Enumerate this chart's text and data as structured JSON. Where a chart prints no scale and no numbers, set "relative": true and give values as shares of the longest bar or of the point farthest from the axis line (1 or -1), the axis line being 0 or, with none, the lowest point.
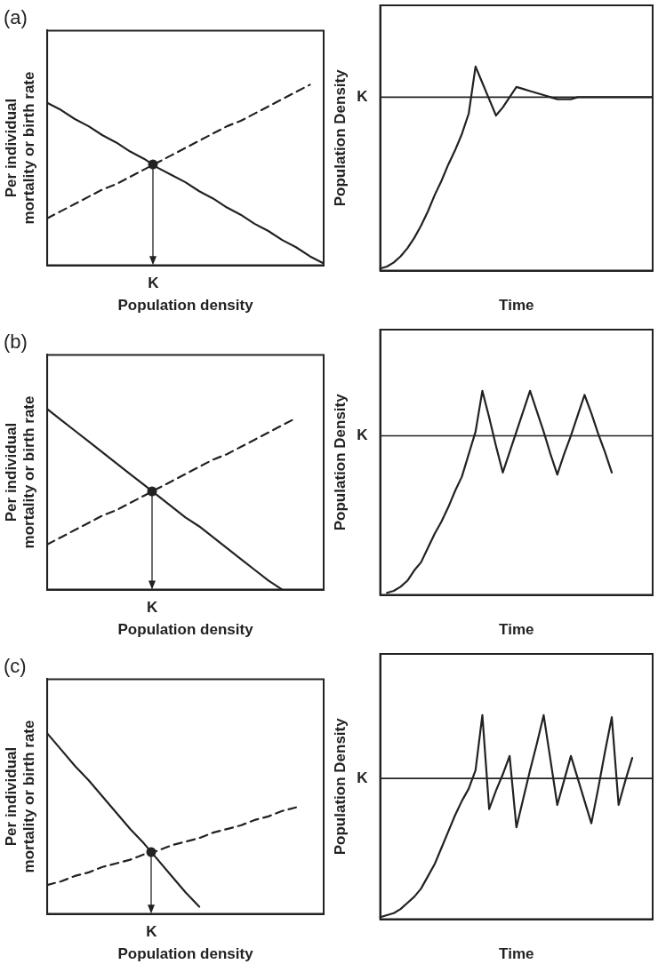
{
  "chart_data": [
    {
      "type": "line",
      "title": "(a)",
      "xlabel": "Population density",
      "ylabel": "Per individual mortality or birth rate",
      "relative": true,
      "tick_labels": false,
      "grid": false,
      "legend": false,
      "annotations": [
        "K"
      ],
      "categories": [
        null,
        null,
        null,
        null,
        null,
        null,
        null,
        null,
        null,
        null,
        null,
        null,
        null,
        null,
        null,
        null,
        null,
        null,
        null,
        null,
        null
      ],
      "series": [
        {
          "type": "line",
          "color": "#222222",
          "line_style": "solid",
          "marker": "none",
          "values": [
            0.9,
            0.86,
            0.81,
            0.77,
            0.72,
            0.68,
            0.63,
            0.59,
            0.54,
            0.5,
            0.46,
            0.41,
            0.37,
            0.32,
            0.28,
            0.23,
            0.19,
            0.14,
            0.1,
            0.05,
            0.01
          ]
        },
        {
          "type": "line",
          "color": "#222222",
          "line_style": "dashed",
          "marker": "none",
          "values": [
            0.26,
            0.3,
            0.34,
            0.38,
            0.42,
            0.45,
            0.49,
            0.53,
            0.57,
            0.61,
            0.65,
            0.69,
            0.73,
            0.77,
            0.8,
            0.84,
            0.88,
            0.92,
            0.96,
            1.0,
            null
          ]
        }
      ]
    },
    {
      "type": "line",
      "xlabel": "Time",
      "ylabel": "Population Density",
      "relative": true,
      "tick_labels": false,
      "grid": false,
      "legend": false,
      "categories": [
        null,
        null,
        null,
        null,
        null,
        null,
        null,
        null,
        null,
        null,
        null,
        null,
        null,
        null,
        null,
        null,
        null,
        null,
        null,
        null,
        null,
        null,
        null,
        null,
        null,
        null,
        null,
        null,
        null,
        null,
        null,
        null,
        null,
        null,
        null,
        null,
        null,
        null,
        null,
        null,
        null
      ],
      "ref_lines": [
        {
          "axis": "y",
          "value": 0.85,
          "label": "K"
        }
      ],
      "series": [
        {
          "type": "line",
          "color": "#222222",
          "line_style": "solid",
          "marker": "none",
          "values": [
            0.01,
            0.02,
            0.04,
            0.07,
            0.11,
            0.16,
            0.22,
            0.29,
            0.37,
            0.44,
            0.52,
            0.59,
            0.67,
            0.77,
            1.0,
            0.92,
            0.84,
            0.76,
            0.8,
            0.85,
            0.9,
            0.89,
            0.88,
            0.87,
            0.86,
            0.85,
            0.84,
            0.84,
            0.84,
            0.85,
            0.85,
            0.85,
            0.85,
            0.85,
            0.85,
            0.85,
            0.85,
            0.85,
            0.85,
            0.85,
            0.85
          ]
        }
      ]
    },
    {
      "type": "line",
      "title": "(b)",
      "xlabel": "Population density",
      "ylabel": "Per individual mortality or birth rate",
      "relative": true,
      "tick_labels": false,
      "grid": false,
      "legend": false,
      "annotations": [
        "K"
      ],
      "categories": [
        null,
        null,
        null,
        null,
        null,
        null,
        null,
        null,
        null,
        null,
        null,
        null,
        null,
        null,
        null,
        null,
        null,
        null,
        null,
        null,
        null
      ],
      "series": [
        {
          "type": "line",
          "color": "#222222",
          "line_style": "solid",
          "marker": "none",
          "values": [
            1.0,
            0.94,
            0.88,
            0.82,
            0.76,
            0.7,
            0.64,
            0.58,
            0.52,
            0.46,
            0.4,
            0.35,
            0.29,
            0.23,
            0.17,
            0.11,
            0.05,
            0.0,
            null,
            null,
            null
          ]
        },
        {
          "type": "line",
          "color": "#222222",
          "line_style": "dashed",
          "marker": "none",
          "values": [
            0.25,
            0.29,
            0.33,
            0.37,
            0.41,
            0.44,
            0.48,
            0.52,
            0.56,
            0.6,
            0.64,
            0.68,
            0.72,
            0.75,
            0.79,
            0.83,
            0.87,
            0.91,
            0.95,
            null,
            null
          ]
        }
      ]
    },
    {
      "type": "line",
      "xlabel": "Time",
      "ylabel": "Population Density",
      "relative": true,
      "tick_labels": false,
      "grid": false,
      "legend": false,
      "categories": [
        null,
        null,
        null,
        null,
        null,
        null,
        null,
        null,
        null,
        null,
        null,
        null,
        null,
        null,
        null,
        null,
        null,
        null,
        null,
        null,
        null,
        null,
        null,
        null,
        null,
        null,
        null,
        null,
        null,
        null,
        null,
        null,
        null,
        null,
        null,
        null,
        null,
        null,
        null,
        null,
        null
      ],
      "ref_lines": [
        {
          "axis": "y",
          "value": 0.78,
          "label": "K"
        }
      ],
      "series": [
        {
          "type": "line",
          "color": "#222222",
          "line_style": "solid",
          "marker": "none",
          "values": [
            null,
            0.01,
            0.02,
            0.04,
            0.07,
            0.12,
            0.16,
            0.23,
            0.3,
            0.36,
            0.43,
            0.51,
            0.58,
            0.69,
            0.8,
            1.0,
            0.87,
            0.73,
            0.6,
            0.7,
            0.8,
            0.9,
            1.0,
            0.9,
            0.8,
            0.69,
            0.59,
            0.69,
            0.78,
            0.88,
            0.98,
            0.89,
            0.79,
            0.7,
            0.6,
            null,
            null,
            null,
            null,
            null,
            null
          ]
        }
      ]
    },
    {
      "type": "line",
      "title": "(c)",
      "xlabel": "Population density",
      "ylabel": "Per individual mortality or birth rate",
      "relative": true,
      "tick_labels": false,
      "grid": false,
      "legend": false,
      "annotations": [
        "K"
      ],
      "categories": [
        null,
        null,
        null,
        null,
        null,
        null,
        null,
        null,
        null,
        null,
        null,
        null,
        null,
        null,
        null,
        null,
        null,
        null,
        null,
        null,
        null
      ],
      "series": [
        {
          "type": "line",
          "color": "#222222",
          "line_style": "solid",
          "marker": "none",
          "values": [
            1.0,
            0.91,
            0.82,
            0.74,
            0.65,
            0.56,
            0.47,
            0.39,
            0.3,
            0.21,
            0.12,
            0.04,
            null,
            null,
            null,
            null,
            null,
            null,
            null,
            null,
            null
          ]
        },
        {
          "type": "line",
          "color": "#222222",
          "line_style": "dashed",
          "marker": "none",
          "values": [
            0.16,
            0.18,
            0.21,
            0.23,
            0.26,
            0.28,
            0.3,
            0.33,
            0.35,
            0.38,
            0.4,
            0.42,
            0.45,
            0.47,
            0.49,
            0.52,
            0.54,
            0.57,
            0.59,
            null,
            null
          ]
        }
      ]
    },
    {
      "type": "line",
      "xlabel": "Time",
      "ylabel": "Population Density",
      "relative": true,
      "tick_labels": false,
      "grid": false,
      "legend": false,
      "categories": [
        null,
        null,
        null,
        null,
        null,
        null,
        null,
        null,
        null,
        null,
        null,
        null,
        null,
        null,
        null,
        null,
        null,
        null,
        null,
        null,
        null,
        null,
        null,
        null,
        null,
        null,
        null,
        null,
        null,
        null,
        null,
        null,
        null,
        null,
        null,
        null,
        null,
        null,
        null,
        null,
        null
      ],
      "ref_lines": [
        {
          "axis": "y",
          "value": 0.69,
          "label": "K"
        }
      ],
      "series": [
        {
          "type": "line",
          "color": "#222222",
          "line_style": "solid",
          "marker": "none",
          "values": [
            0.01,
            0.02,
            0.03,
            0.05,
            0.08,
            0.11,
            0.15,
            0.21,
            0.27,
            0.35,
            0.43,
            0.51,
            0.58,
            0.64,
            0.73,
            1.0,
            0.54,
            0.63,
            0.71,
            0.8,
            0.45,
            0.59,
            0.73,
            0.86,
            1.0,
            0.78,
            0.56,
            0.68,
            0.8,
            0.69,
            0.58,
            0.47,
            0.64,
            0.82,
            0.99,
            0.56,
            0.68,
            0.79,
            null,
            null,
            null
          ]
        }
      ]
    }
  ]
}
